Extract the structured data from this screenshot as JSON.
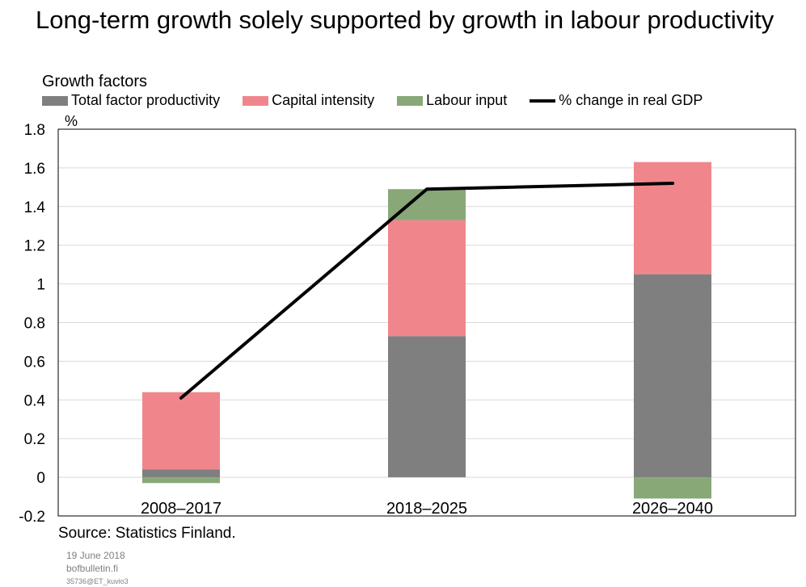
{
  "title": "Long-term growth solely supported by growth in labour productivity",
  "subtitle": "Growth factors",
  "unit": "%",
  "legend": [
    {
      "label": "Total factor productivity",
      "color": "#7f7f7f",
      "kind": "bar"
    },
    {
      "label": "Capital intensity",
      "color": "#f0868c",
      "kind": "bar"
    },
    {
      "label": "Labour input",
      "color": "#88a878",
      "kind": "bar"
    },
    {
      "label": "% change in real GDP",
      "color": "#000000",
      "kind": "line"
    }
  ],
  "chart_data": {
    "type": "bar",
    "stacked": true,
    "categories": [
      "2008–2017",
      "2018–2025",
      "2026–2040"
    ],
    "series": [
      {
        "name": "Total factor productivity",
        "color": "#7f7f7f",
        "values": [
          0.04,
          0.73,
          1.05
        ]
      },
      {
        "name": "Capital intensity",
        "color": "#f0868c",
        "values": [
          0.4,
          0.6,
          0.58
        ]
      },
      {
        "name": "Labour input",
        "color": "#88a878",
        "values": [
          -0.03,
          0.16,
          -0.11
        ]
      }
    ],
    "line": {
      "name": "% change in real GDP",
      "color": "#000000",
      "values": [
        0.41,
        1.49,
        1.52
      ]
    },
    "ylim": [
      -0.2,
      1.8
    ],
    "yticks": [
      "1.8",
      "1.6",
      "1.4",
      "1.2",
      "1",
      "0.8",
      "0.6",
      "0.4",
      "0.2",
      "0",
      "-0.2"
    ],
    "ytick_values": [
      1.8,
      1.6,
      1.4,
      1.2,
      1,
      0.8,
      0.6,
      0.4,
      0.2,
      0,
      -0.2
    ],
    "grid": true,
    "legend_position": "top"
  },
  "source": "Source: Statistics Finland.",
  "footer": {
    "date": "19 June 2018",
    "site": "bofbulletin.fi",
    "code": "35736@ET_kuvio3"
  }
}
